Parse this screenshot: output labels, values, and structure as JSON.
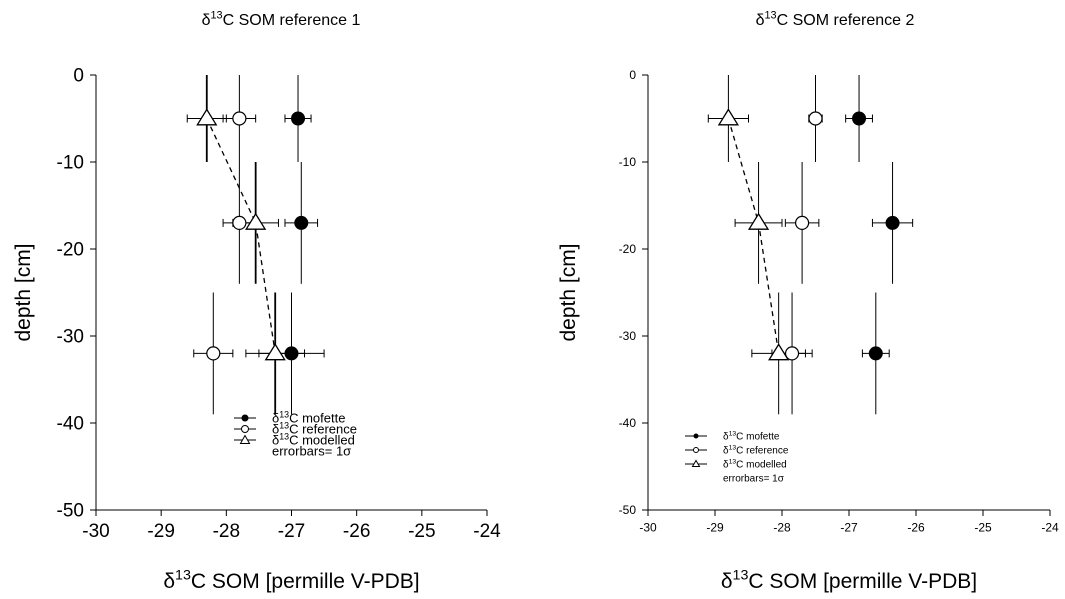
{
  "chart_data": [
    {
      "type": "scatter",
      "title": {
        "prefix": "δ",
        "sup": "13",
        "rest": "C SOM reference 1"
      },
      "xlabel": {
        "prefix": "δ",
        "sup": "13",
        "rest": "C SOM [permille V-PDB]"
      },
      "ylabel": "depth [cm]",
      "xlim": [
        -30,
        -24
      ],
      "ylim": [
        -50,
        0
      ],
      "xticks": [
        -30,
        -29,
        -28,
        -27,
        -26,
        -25,
        -24
      ],
      "yticks": [
        0,
        -10,
        -20,
        -30,
        -40,
        -50
      ],
      "grid": false,
      "legend_position": "lower-middle",
      "series": [
        {
          "name": "mofette",
          "marker": "filled-circle",
          "line": "none",
          "points": [
            {
              "x": -26.9,
              "y": -5,
              "xerr": 0.2,
              "yerr": 5
            },
            {
              "x": -26.85,
              "y": -17,
              "xerr": 0.25,
              "yerr": 7
            },
            {
              "x": -27.0,
              "y": -32,
              "xerr": 0.5,
              "yerr": 7
            }
          ]
        },
        {
          "name": "reference",
          "marker": "open-circle",
          "line": "none",
          "points": [
            {
              "x": -27.8,
              "y": -5,
              "xerr": 0.25,
              "yerr": 5
            },
            {
              "x": -27.8,
              "y": -17,
              "xerr": 0.25,
              "yerr": 7
            },
            {
              "x": -28.2,
              "y": -32,
              "xerr": 0.3,
              "yerr": 7
            }
          ]
        },
        {
          "name": "modelled",
          "marker": "open-triangle",
          "line": "dashed",
          "points": [
            {
              "x": -28.3,
              "y": -5,
              "xerr": 0.3,
              "yerr": 5
            },
            {
              "x": -27.55,
              "y": -17,
              "xerr": 0.35,
              "yerr": 7
            },
            {
              "x": -27.25,
              "y": -32,
              "xerr": 0.45,
              "yerr": 7
            }
          ]
        }
      ],
      "legend": [
        {
          "prefix": "δ",
          "sup": "13",
          "rest": "C mofette"
        },
        {
          "prefix": "δ",
          "sup": "13",
          "rest": "C reference"
        },
        {
          "prefix": "δ",
          "sup": "13",
          "rest": "C modelled"
        },
        {
          "prefix": "errorbars= 1σ",
          "sup": "",
          "rest": ""
        }
      ]
    },
    {
      "type": "scatter",
      "title": {
        "prefix": "δ",
        "sup": "13",
        "rest": "C SOM reference 2"
      },
      "xlabel": {
        "prefix": "δ",
        "sup": "13",
        "rest": "C SOM [permille V-PDB]"
      },
      "ylabel": "depth [cm]",
      "xlim": [
        -30,
        -24
      ],
      "ylim": [
        -50,
        0
      ],
      "xticks": [
        -30,
        -29,
        -28,
        -27,
        -26,
        -25,
        -24
      ],
      "yticks": [
        0,
        -10,
        -20,
        -30,
        -40,
        -50
      ],
      "grid": false,
      "legend_position": "lower-left",
      "series": [
        {
          "name": "mofette",
          "marker": "filled-circle",
          "line": "none",
          "points": [
            {
              "x": -26.85,
              "y": -5,
              "xerr": 0.2,
              "yerr": 5
            },
            {
              "x": -26.35,
              "y": -17,
              "xerr": 0.3,
              "yerr": 7
            },
            {
              "x": -26.6,
              "y": -32,
              "xerr": 0.2,
              "yerr": 7
            }
          ]
        },
        {
          "name": "reference",
          "marker": "open-circle",
          "line": "none",
          "points": [
            {
              "x": -27.5,
              "y": -5,
              "xerr": 0.1,
              "yerr": 5
            },
            {
              "x": -27.7,
              "y": -17,
              "xerr": 0.25,
              "yerr": 7
            },
            {
              "x": -27.85,
              "y": -32,
              "xerr": 0.3,
              "yerr": 7
            }
          ]
        },
        {
          "name": "modelled",
          "marker": "open-triangle",
          "line": "dashed",
          "points": [
            {
              "x": -28.8,
              "y": -5,
              "xerr": 0.3,
              "yerr": 5
            },
            {
              "x": -28.35,
              "y": -17,
              "xerr": 0.35,
              "yerr": 7
            },
            {
              "x": -28.05,
              "y": -32,
              "xerr": 0.4,
              "yerr": 7
            }
          ]
        }
      ],
      "legend": [
        {
          "prefix": "δ",
          "sup": "13",
          "rest": "C mofette"
        },
        {
          "prefix": "δ",
          "sup": "13",
          "rest": "C reference"
        },
        {
          "prefix": "δ",
          "sup": "13",
          "rest": "C modelled"
        },
        {
          "prefix": "errorbars= 1σ",
          "sup": "",
          "rest": ""
        }
      ]
    }
  ]
}
